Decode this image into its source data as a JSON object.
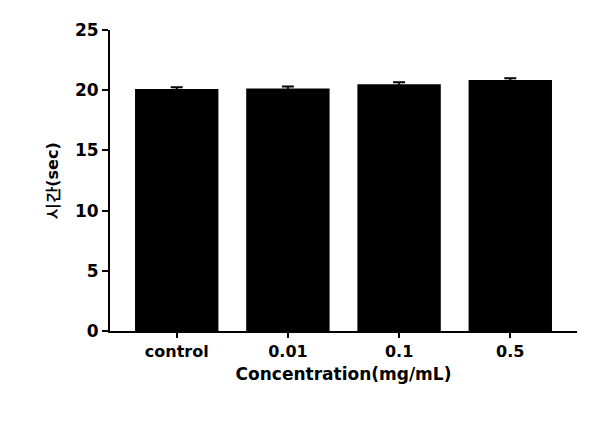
{
  "chart_data": {
    "type": "bar",
    "x_label": "Concentration(mg/mL)",
    "y_label": "시간(sec)",
    "categories": [
      "control",
      "0.01",
      "0.1",
      "0.5"
    ],
    "values": [
      20.1,
      20.15,
      20.5,
      20.85
    ],
    "errors": [
      0.15,
      0.15,
      0.15,
      0.15
    ],
    "color": "#000000",
    "ylim": [
      0,
      25
    ],
    "yticks": [
      0,
      5,
      10,
      15,
      20,
      25
    ],
    "grid": false
  }
}
